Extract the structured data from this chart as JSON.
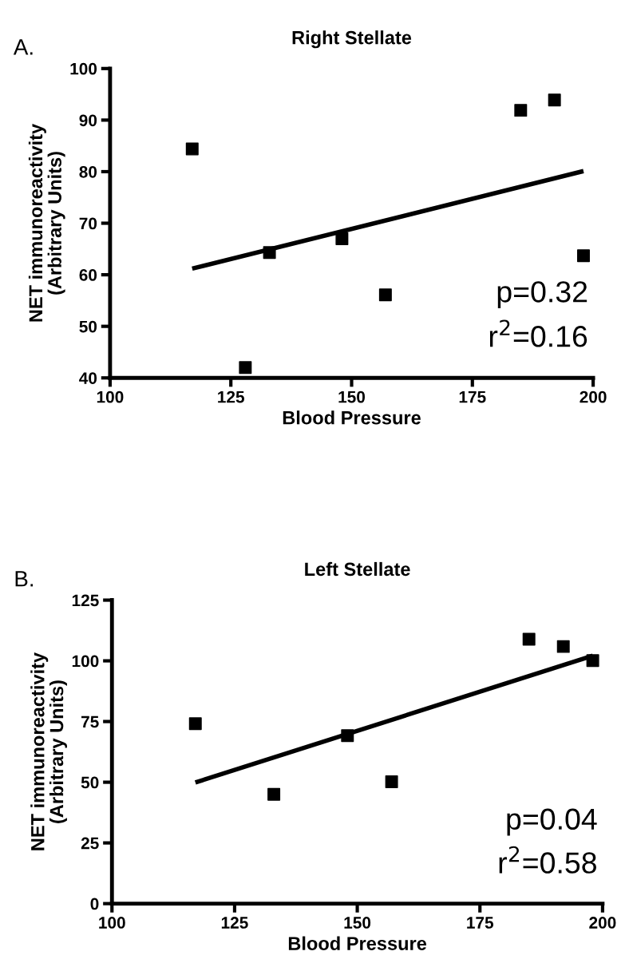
{
  "chart_data": [
    {
      "type": "scatter",
      "title": "Right Stellate",
      "xlabel": "Blood Pressure",
      "ylabel": "NET immunoreactivity\n(Arbitrary Units)",
      "grid": false,
      "legend": false,
      "annotations": [
        "A.",
        "p=0.32",
        "r$^{2}$=0.16"
      ],
      "xlim": [
        100,
        200
      ],
      "xticks": [
        100,
        125,
        150,
        175,
        200
      ],
      "ylim": [
        40,
        100
      ],
      "yticks": [
        40,
        50,
        60,
        70,
        80,
        90,
        100
      ],
      "series": [
        {
          "color": "#000000",
          "marker": "square",
          "x": [
            117,
            128,
            133,
            148,
            157,
            185,
            192,
            198
          ],
          "values": [
            84.4,
            42.0,
            64.3,
            67.0,
            56.1,
            91.9,
            93.9,
            63.7
          ]
        },
        {
          "type": "line",
          "marker": "none",
          "color": "#000000",
          "x": [
            117,
            198
          ],
          "values": [
            61.2,
            80.1
          ]
        }
      ]
    },
    {
      "type": "scatter",
      "title": "Left Stellate",
      "xlabel": "Blood Pressure",
      "ylabel": "NET immunoreactivity\n(Arbitrary Units)",
      "grid": false,
      "legend": false,
      "annotations": [
        "B.",
        "p=0.04",
        "r$^{2}$=0.58"
      ],
      "xlim": [
        100,
        200
      ],
      "xticks": [
        100,
        125,
        150,
        175,
        200
      ],
      "ylim": [
        0,
        125
      ],
      "yticks": [
        0,
        25,
        50,
        75,
        100,
        125
      ],
      "series": [
        {
          "color": "#000000",
          "marker": "square",
          "x": [
            117,
            133,
            148,
            157,
            185,
            192,
            198
          ],
          "values": [
            74.1,
            45.0,
            69.2,
            50.2,
            108.9,
            105.9,
            100.1
          ]
        },
        {
          "type": "line",
          "marker": "none",
          "color": "#000000",
          "x": [
            117,
            198
          ],
          "values": [
            49.9,
            102.1
          ]
        }
      ]
    }
  ]
}
